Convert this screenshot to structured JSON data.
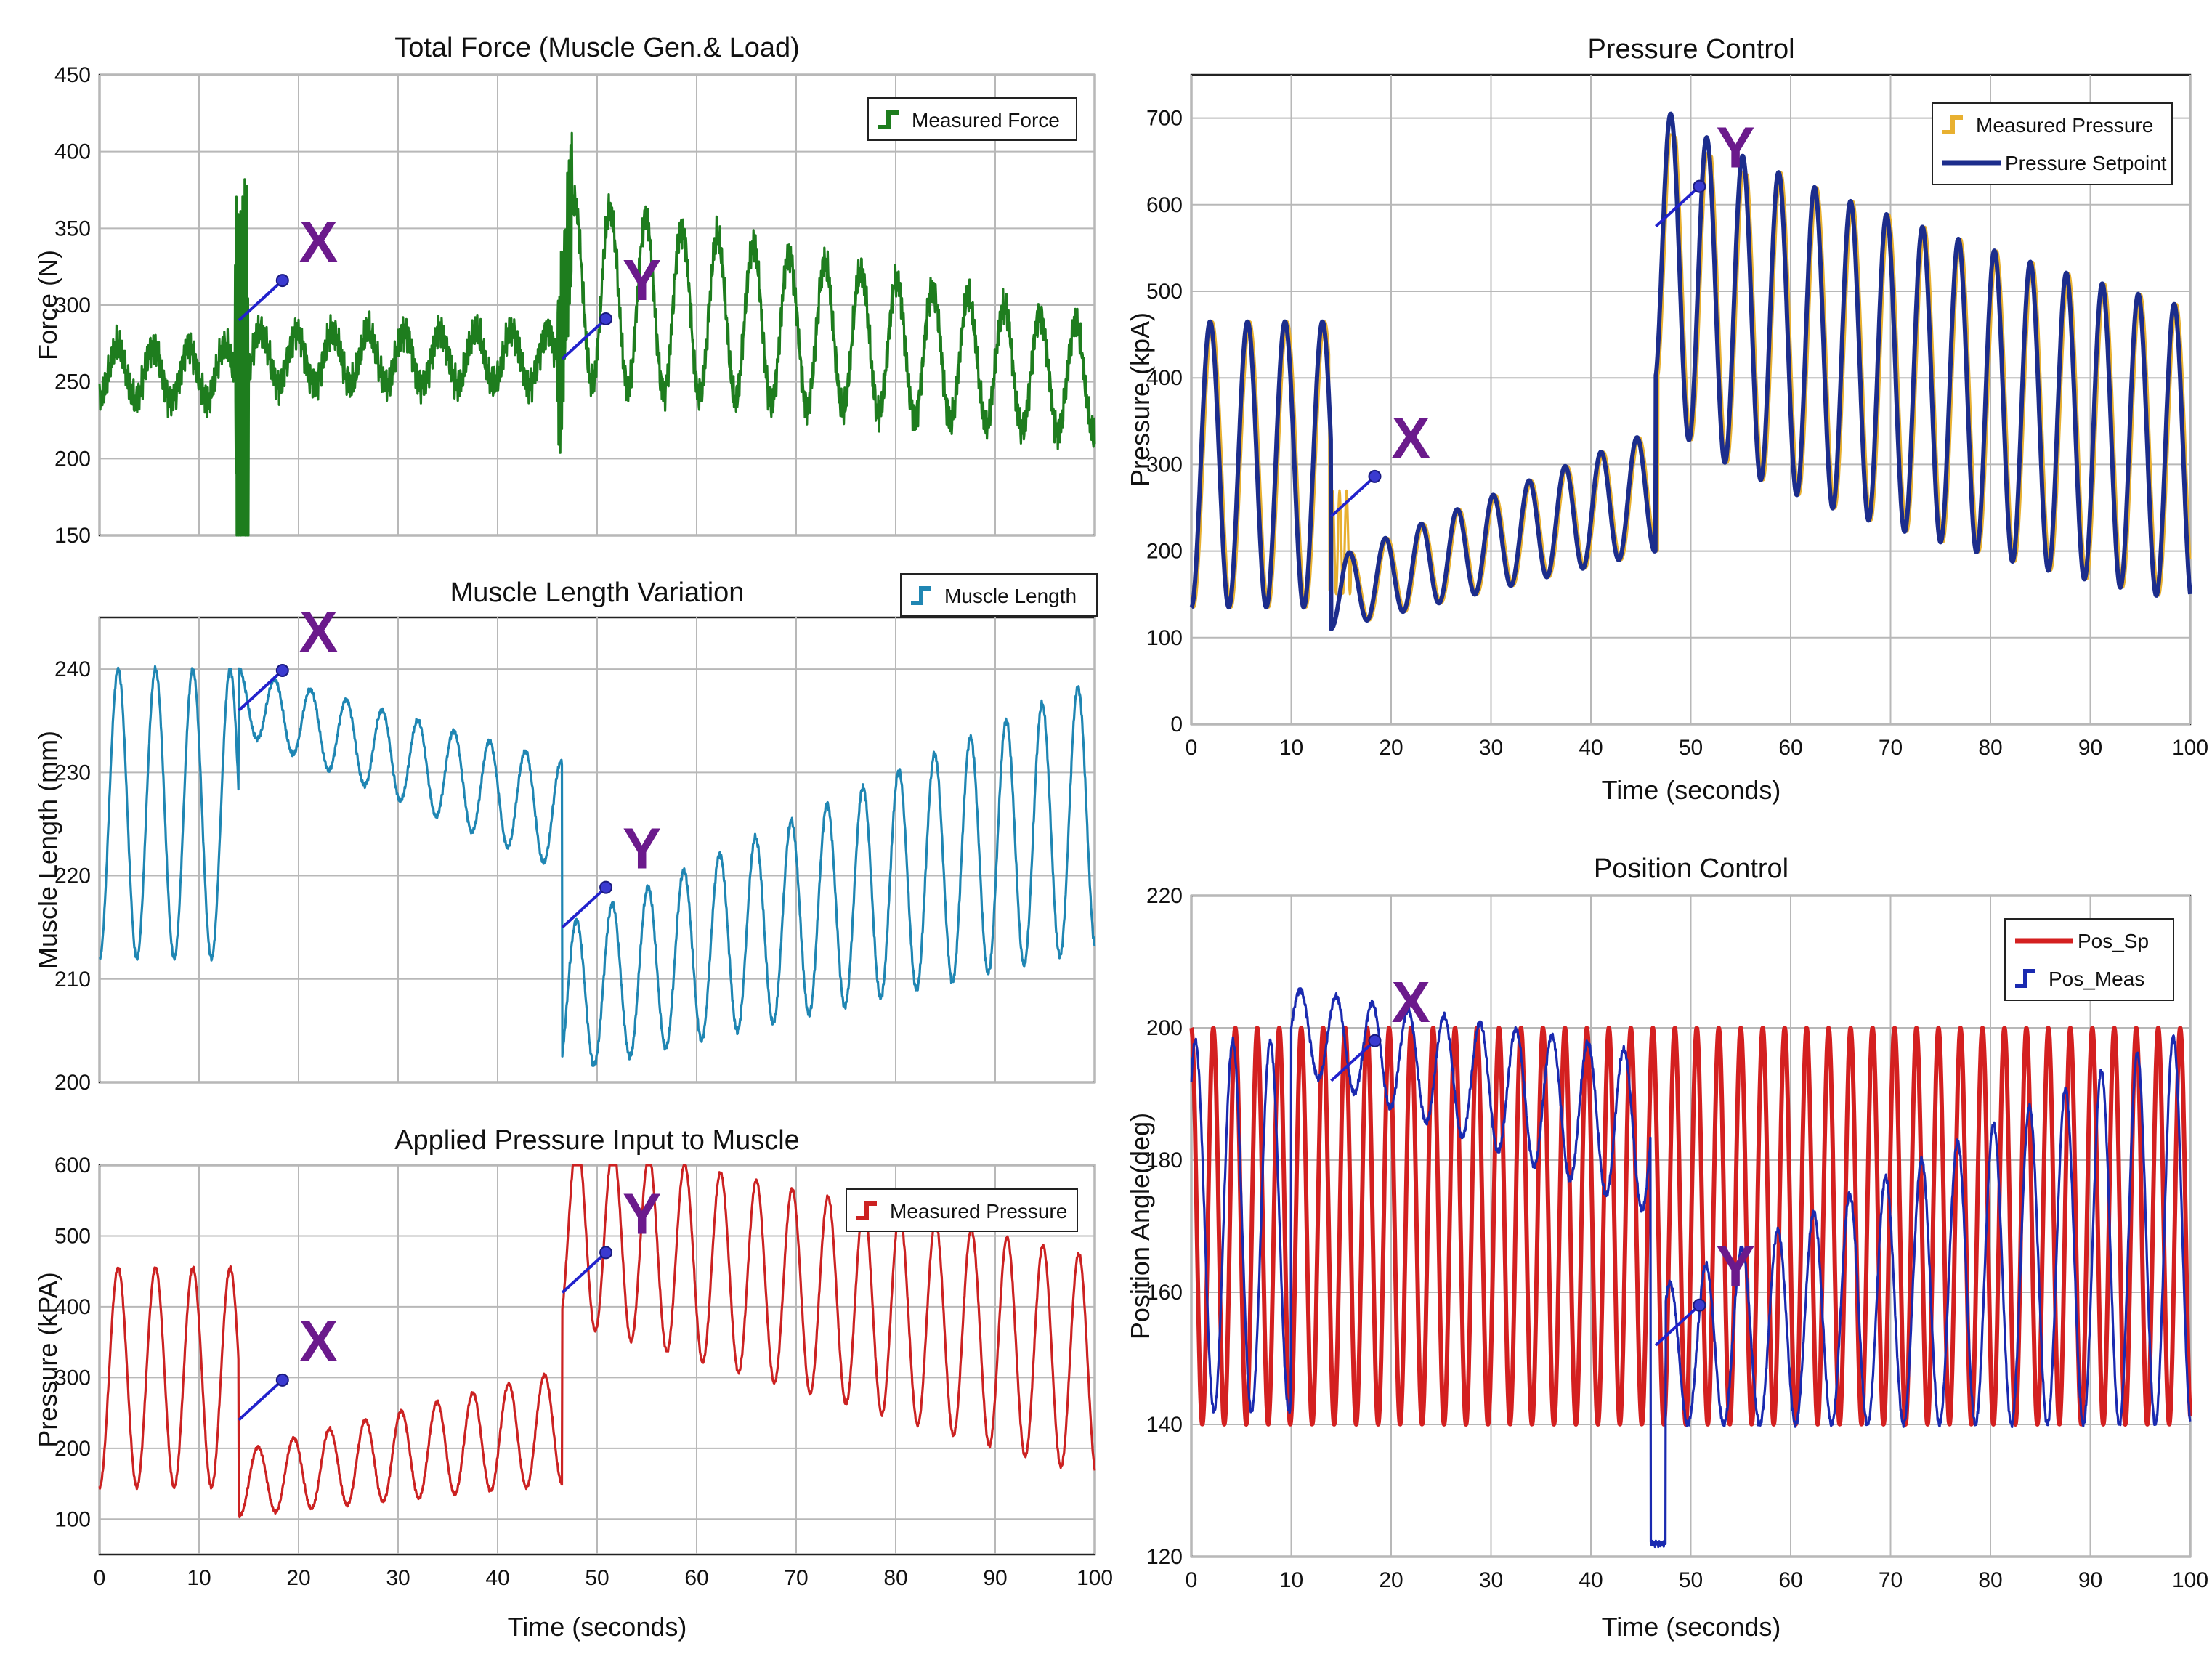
{
  "chart_data": [
    {
      "id": "force",
      "type": "line",
      "title": "Total Force (Muscle Gen.& Load)",
      "xlabel": "",
      "ylabel": "Force (N)",
      "xlim": [
        0,
        100
      ],
      "ylim": [
        150,
        450
      ],
      "xticks": [],
      "yticks": [
        150,
        200,
        250,
        300,
        350,
        400,
        450
      ],
      "grid": true,
      "legend_position": "top-right",
      "series": [
        {
          "name": "Measured Force",
          "color": "#1e7d1e",
          "signal": "force"
        }
      ],
      "annotations": [
        {
          "label": "X",
          "point": [
            14,
            290
          ]
        },
        {
          "label": "Y",
          "point": [
            46.5,
            265
          ]
        }
      ]
    },
    {
      "id": "length",
      "type": "line",
      "title": "Muscle Length Variation",
      "xlabel": "",
      "ylabel": "Muscle Length (mm)",
      "xlim": [
        0,
        100
      ],
      "ylim": [
        200,
        245
      ],
      "xticks": [],
      "yticks": [
        200,
        210,
        220,
        230,
        240
      ],
      "grid": true,
      "legend_position": "above-right",
      "series": [
        {
          "name": "Muscle Length",
          "color": "#1f86b3",
          "signal": "length"
        }
      ],
      "annotations": [
        {
          "label": "X",
          "point": [
            14,
            236
          ]
        },
        {
          "label": "Y",
          "point": [
            46.5,
            215
          ]
        }
      ]
    },
    {
      "id": "applied",
      "type": "line",
      "title": "Applied Pressure Input to Muscle",
      "xlabel": "Time (seconds)",
      "ylabel": "Pressure (kPA)",
      "xlim": [
        0,
        100
      ],
      "ylim": [
        50,
        600
      ],
      "xticks": [
        0,
        10,
        20,
        30,
        40,
        50,
        60,
        70,
        80,
        90,
        100
      ],
      "yticks": [
        100,
        200,
        300,
        400,
        500,
        600
      ],
      "grid": true,
      "legend_position": "top-right",
      "series": [
        {
          "name": "Measured Pressure",
          "color": "#cc2222",
          "signal": "pressure"
        }
      ],
      "annotations": [
        {
          "label": "X",
          "point": [
            14,
            240
          ]
        },
        {
          "label": "Y",
          "point": [
            46.5,
            420
          ]
        }
      ]
    },
    {
      "id": "pressure_control",
      "type": "line",
      "title": "Pressure Control",
      "xlabel": "Time (seconds)",
      "ylabel": "Pressure (kpA)",
      "xlim": [
        0,
        100
      ],
      "ylim": [
        0,
        750
      ],
      "xticks": [
        0,
        10,
        20,
        30,
        40,
        50,
        60,
        70,
        80,
        90,
        100
      ],
      "yticks": [
        0,
        100,
        200,
        300,
        400,
        500,
        600,
        700
      ],
      "grid": true,
      "legend_position": "top-right",
      "series": [
        {
          "name": "Measured Pressure",
          "color": "#e8b030",
          "signal": "pressure_meas"
        },
        {
          "name": "Pressure Setpoint",
          "color": "#1c2d8c",
          "signal": "pressure_sp"
        }
      ],
      "annotations": [
        {
          "label": "X",
          "point": [
            14,
            240
          ]
        },
        {
          "label": "Y",
          "point": [
            46.5,
            575
          ]
        }
      ]
    },
    {
      "id": "position_control",
      "type": "line",
      "title": "Position Control",
      "xlabel": "Time (seconds)",
      "ylabel": "Position Angle(deg)",
      "xlim": [
        0,
        100
      ],
      "ylim": [
        120,
        220
      ],
      "xticks": [
        0,
        10,
        20,
        30,
        40,
        50,
        60,
        70,
        80,
        90,
        100
      ],
      "yticks": [
        120,
        140,
        160,
        180,
        200,
        220
      ],
      "grid": true,
      "legend_position": "top-right",
      "series": [
        {
          "name": "Pos_Sp",
          "color": "#d42020",
          "signal": "pos_sp"
        },
        {
          "name": "Pos_Meas",
          "color": "#1a2ab0",
          "signal": "pos_meas"
        }
      ],
      "annotations": [
        {
          "label": "X",
          "point": [
            14,
            192
          ]
        },
        {
          "label": "Y",
          "point": [
            46.5,
            152
          ]
        }
      ]
    }
  ]
}
